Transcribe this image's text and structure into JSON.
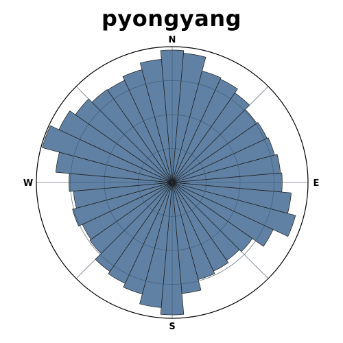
{
  "chart_data": {
    "type": "polar-bar",
    "title": "pyongyang",
    "compass_labels": {
      "n": "N",
      "e": "E",
      "s": "S",
      "w": "W"
    },
    "bar_color": "#4a6f96",
    "edge_color": "#1b1b1b",
    "radial_max": 1.0,
    "radial_gridlines": [
      0.25,
      0.5,
      0.75
    ],
    "grid": true,
    "bins": 36,
    "values": [
      0.975,
      0.955,
      0.85,
      0.84,
      0.805,
      0.76,
      0.77,
      0.78,
      0.8,
      0.81,
      0.88,
      0.94,
      0.82,
      0.72,
      0.7,
      0.72,
      0.74,
      0.82,
      0.975,
      0.925,
      0.85,
      0.82,
      0.8,
      0.74,
      0.73,
      0.76,
      0.73,
      0.76,
      0.86,
      0.99,
      0.92,
      0.87,
      0.835,
      0.83,
      0.86,
      0.91
    ]
  }
}
